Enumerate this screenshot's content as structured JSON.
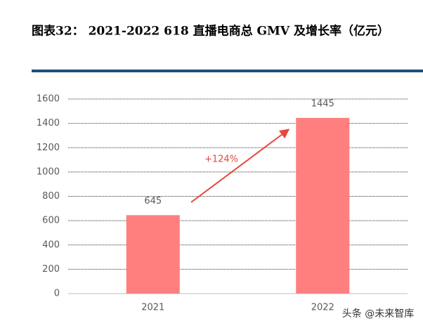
{
  "chart_data": {
    "type": "bar",
    "title": "图表32：  2021-2022 618 直播电商总 GMV 及增长率（亿元）",
    "categories": [
      "2021",
      "2022"
    ],
    "values": [
      645,
      1445
    ],
    "color": "#ff7f7f",
    "ylim": [
      0,
      1600
    ],
    "yticks": [
      0,
      200,
      400,
      600,
      800,
      1000,
      1200,
      1400,
      1600
    ],
    "grid": true,
    "annotation": "+124%",
    "watermark": "头条 @未来智库"
  }
}
